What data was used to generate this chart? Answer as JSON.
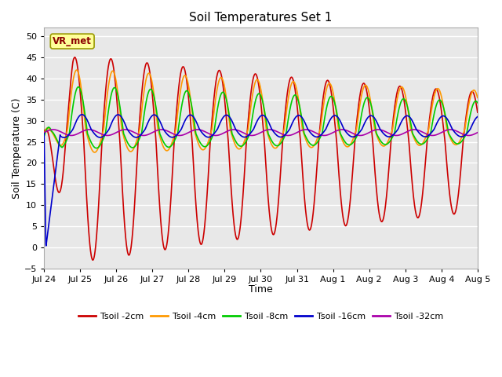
{
  "title": "Soil Temperatures Set 1",
  "xlabel": "Time",
  "ylabel": "Soil Temperature (C)",
  "xlim_days": [
    0,
    12
  ],
  "ylim": [
    -5,
    52
  ],
  "yticks": [
    -5,
    0,
    5,
    10,
    15,
    20,
    25,
    30,
    35,
    40,
    45,
    50
  ],
  "xtick_labels": [
    "Jul 24",
    "Jul 25",
    "Jul 26",
    "Jul 27",
    "Jul 28",
    "Jul 29",
    "Jul 30",
    "Jul 31",
    "Aug 1",
    "Aug 2",
    "Aug 3",
    "Aug 4",
    "Aug 5"
  ],
  "xtick_positions": [
    0,
    1,
    2,
    3,
    4,
    5,
    6,
    7,
    8,
    9,
    10,
    11,
    12
  ],
  "annotation_text": "VR_met",
  "colors": {
    "Tsoil -2cm": "#cc0000",
    "Tsoil -4cm": "#ff9900",
    "Tsoil -8cm": "#00cc00",
    "Tsoil -16cm": "#0000cc",
    "Tsoil -32cm": "#aa00aa"
  },
  "legend_labels": [
    "Tsoil -2cm",
    "Tsoil -4cm",
    "Tsoil -8cm",
    "Tsoil -16cm",
    "Tsoil -32cm"
  ],
  "plot_bg_color": "#e8e8e8",
  "grid_color": "#ffffff"
}
